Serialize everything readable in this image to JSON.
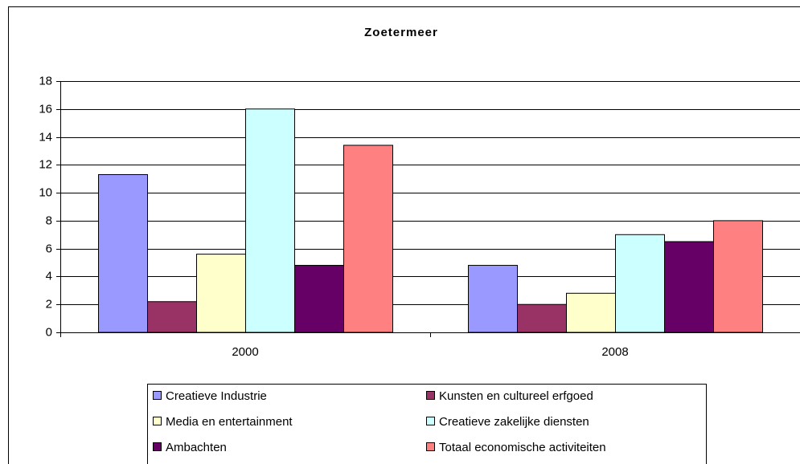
{
  "chart_data": {
    "type": "bar",
    "title": "Zoetermeer",
    "categories": [
      "2000",
      "2008"
    ],
    "series": [
      {
        "name": "Creatieve Industrie",
        "color": "#9999ff",
        "values": [
          11.3,
          4.8
        ]
      },
      {
        "name": "Kunsten en cultureel erfgoed",
        "color": "#993366",
        "values": [
          2.2,
          2.0
        ]
      },
      {
        "name": "Media en entertainment",
        "color": "#ffffcc",
        "values": [
          5.6,
          2.8
        ]
      },
      {
        "name": "Creatieve zakelijke diensten",
        "color": "#ccffff",
        "values": [
          16.0,
          7.0
        ]
      },
      {
        "name": "Ambachten",
        "color": "#660066",
        "values": [
          4.8,
          6.5
        ]
      },
      {
        "name": "Totaal economische activiteiten",
        "color": "#ff8080",
        "values": [
          13.4,
          8.0
        ]
      }
    ],
    "ylim": [
      0,
      18
    ],
    "yticks": [
      0,
      2,
      4,
      6,
      8,
      10,
      12,
      14,
      16,
      18
    ],
    "grid": true,
    "legend": "bottom"
  }
}
